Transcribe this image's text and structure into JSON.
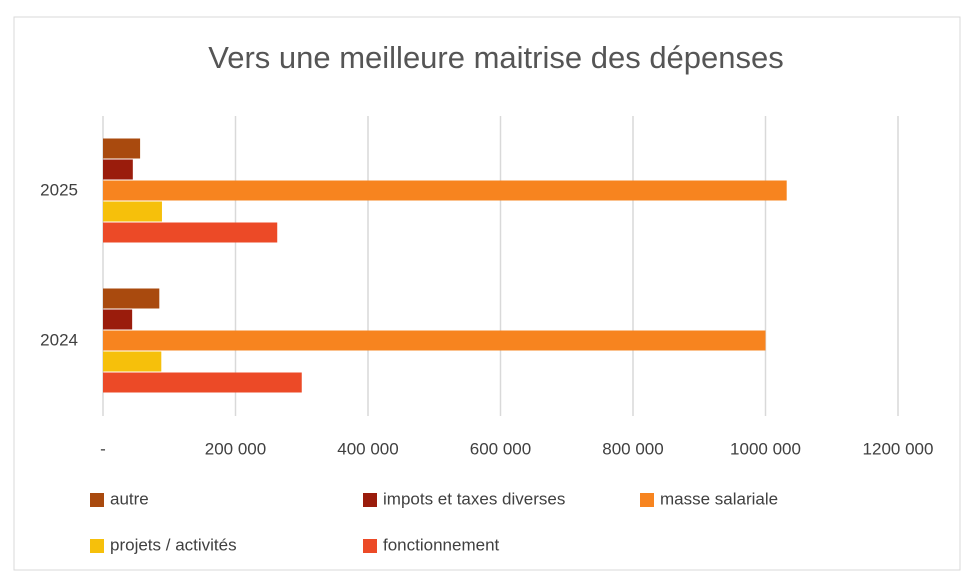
{
  "chart_data": {
    "type": "hbar",
    "title": "Vers une meilleure maitrise des dépenses",
    "categories": [
      "2025",
      "2024"
    ],
    "series": [
      {
        "name": "autre",
        "color": "#a94a0e",
        "values": [
          56000,
          85000
        ]
      },
      {
        "name": "impots et taxes diverses",
        "color": "#9a1c0c",
        "values": [
          45000,
          44000
        ]
      },
      {
        "name": "masse salariale",
        "color": "#f7841f",
        "values": [
          1032000,
          1000000
        ]
      },
      {
        "name": "projets / activités",
        "color": "#f6c00b",
        "values": [
          89000,
          88000
        ]
      },
      {
        "name": "fonctionnement",
        "color": "#ec4a27",
        "values": [
          263000,
          300000
        ]
      }
    ],
    "xlim": [
      0,
      1200000
    ],
    "xticks": [
      {
        "value": 0,
        "label": "-"
      },
      {
        "value": 200000,
        "label": "200 000"
      },
      {
        "value": 400000,
        "label": "400 000"
      },
      {
        "value": 600000,
        "label": "600 000"
      },
      {
        "value": 800000,
        "label": "800 000"
      },
      {
        "value": 1000000,
        "label": "1000 000"
      },
      {
        "value": 1200000,
        "label": "1200 000"
      }
    ],
    "grid": true
  }
}
